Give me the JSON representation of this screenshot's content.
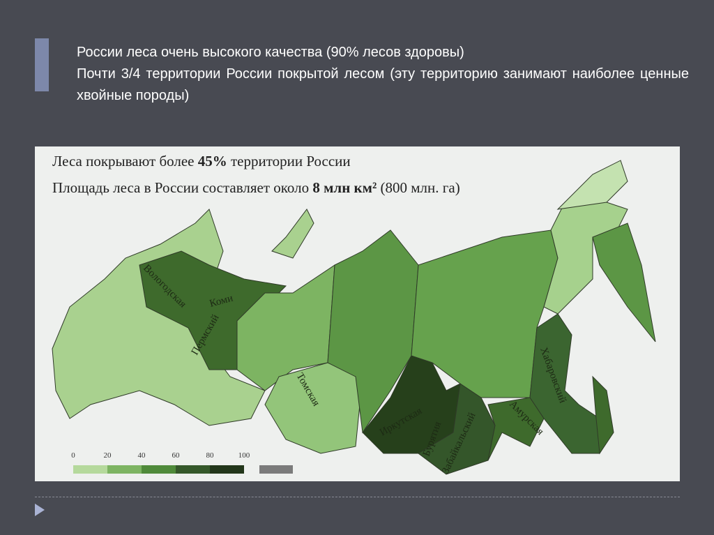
{
  "slide": {
    "lines": [
      "России  леса очень высокого качества  (90% лесов здоровы)",
      "Почти  3/4  территории  России  покрытой  лесом  (эту  территорию занимают наиболее ценные хвойные породы)"
    ]
  },
  "map": {
    "heading_1": [
      "Леса покрывают более ",
      "45%",
      " территории России"
    ],
    "heading_2": [
      "Площадь леса в России составляет около ",
      "8 млн км²",
      " (800 млн. га)"
    ],
    "regions": [
      "Вологодская",
      "Коми",
      "Пермский",
      "Томская",
      "Иркутская",
      "Бурятия",
      "Забайкальский",
      "Хабаровский",
      "Амурская"
    ],
    "legend": {
      "ticks": [
        0,
        20,
        40,
        60,
        80,
        100
      ]
    }
  }
}
